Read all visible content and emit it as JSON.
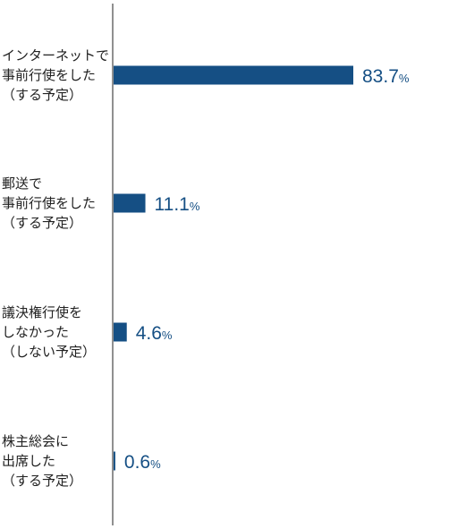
{
  "colors": {
    "bar": "#154f84",
    "value_text": "#154f84",
    "axis": "#222222",
    "label_text": "#222222"
  },
  "chart_data": {
    "type": "bar",
    "orientation": "horizontal",
    "title": "",
    "xlabel": "",
    "ylabel": "",
    "xlim": [
      0,
      100
    ],
    "grid": false,
    "categories": [
      [
        "インターネットで",
        "事前行使をした",
        "（する予定）"
      ],
      [
        "郵送で",
        "事前行使をした",
        "（する予定）"
      ],
      [
        "議決権行使を",
        "しなかった",
        "（しない予定）"
      ],
      [
        "株主総会に",
        "出席した",
        "（する予定）"
      ]
    ],
    "values": [
      83.7,
      11.1,
      4.6,
      0.6
    ],
    "value_labels": [
      "83.7",
      "11.1",
      "4.6",
      "0.6"
    ],
    "unit": "%"
  }
}
